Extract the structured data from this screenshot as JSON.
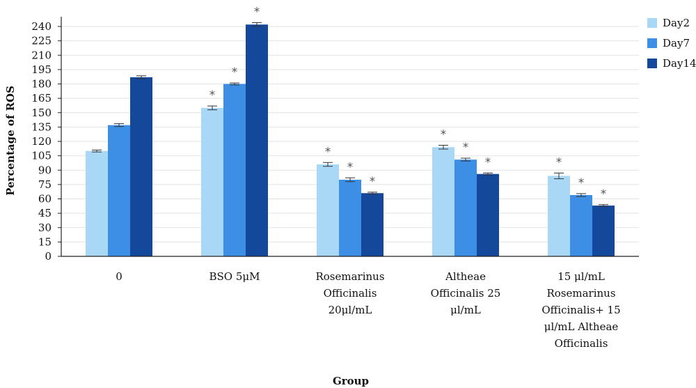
{
  "chart_data": {
    "type": "bar",
    "title": "",
    "xlabel": "Group",
    "ylabel": "Percentage of ROS",
    "ylim": [
      0,
      250
    ],
    "yticks": [
      0,
      15,
      30,
      45,
      60,
      75,
      90,
      105,
      120,
      135,
      150,
      165,
      180,
      195,
      210,
      225,
      240
    ],
    "grid": true,
    "legend_position": "top-right",
    "categories": [
      "0",
      "BSO 5μM",
      "Rosemarinus Officinalis 20μl/mL",
      "Altheae Officinalis 25 μl/mL",
      "15 μl/mL Rosemarinus Officinalis+ 15 μl/mL Altheae Officinalis"
    ],
    "category_lines": [
      [
        "0"
      ],
      [
        "BSO 5μM"
      ],
      [
        "Rosemarinus",
        "Officinalis",
        "20μl/mL"
      ],
      [
        "Altheae",
        "Officinalis 25",
        "μl/mL"
      ],
      [
        "15 μl/mL",
        "Rosemarinus",
        "Officinalis+ 15",
        "μl/mL Altheae",
        "Officinalis"
      ]
    ],
    "series": [
      {
        "name": "Day2",
        "color": "#a8d8f5",
        "values": [
          110,
          155,
          96,
          114,
          84
        ],
        "errors": [
          1,
          2,
          2,
          2,
          3
        ],
        "significant": [
          false,
          true,
          true,
          true,
          true
        ]
      },
      {
        "name": "Day7",
        "color": "#3d8fe6",
        "values": [
          137,
          180,
          80,
          101,
          64
        ],
        "errors": [
          1.5,
          1,
          2,
          1.5,
          1.5
        ],
        "significant": [
          false,
          true,
          true,
          true,
          true
        ]
      },
      {
        "name": "Day14",
        "color": "#14489a",
        "values": [
          187,
          242,
          66,
          86,
          53
        ],
        "errors": [
          1.5,
          2,
          1,
          1,
          1
        ],
        "significant": [
          false,
          true,
          true,
          true,
          true
        ]
      }
    ],
    "significance_marker": "*"
  }
}
